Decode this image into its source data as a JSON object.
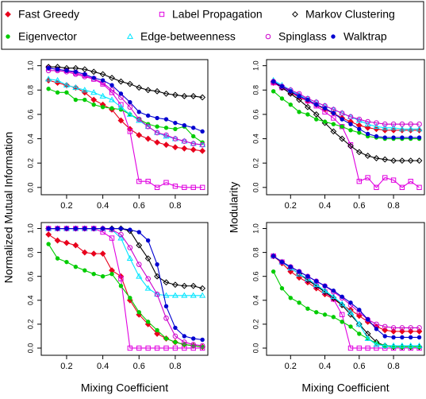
{
  "chart_data": [
    {
      "type": "line",
      "ylabel": "Normalized Mutual Information",
      "x": [
        0.1,
        0.15,
        0.2,
        0.25,
        0.3,
        0.35,
        0.4,
        0.45,
        0.5,
        0.55,
        0.6,
        0.65,
        0.7,
        0.75,
        0.8,
        0.85,
        0.9,
        0.95
      ],
      "xlim": [
        0.06,
        0.98
      ],
      "xticks": [
        0.2,
        0.4,
        0.6,
        0.8
      ],
      "ylim": [
        -0.06,
        1.05
      ],
      "yticks": [
        {
          "value": 0,
          "label": "0.0"
        },
        0.2,
        0.4,
        0.6,
        0.8,
        {
          "value": 1,
          "label": "1.0"
        }
      ],
      "series": [
        {
          "name": "Fast Greedy",
          "color": "#e8001c",
          "marker": "diamond-filled",
          "values": [
            0.88,
            0.86,
            0.84,
            0.82,
            0.78,
            0.72,
            0.68,
            0.64,
            0.55,
            0.48,
            0.43,
            0.4,
            0.37,
            0.35,
            0.33,
            0.32,
            0.31,
            0.3
          ]
        },
        {
          "name": "Label Propagation",
          "color": "#e000e0",
          "marker": "square-open",
          "values": [
            0.98,
            0.97,
            0.96,
            0.94,
            0.92,
            0.89,
            0.85,
            0.78,
            0.68,
            0.46,
            0.05,
            0.05,
            0,
            0.04,
            0.01,
            0,
            0,
            0
          ]
        },
        {
          "name": "Markov Clustering",
          "color": "#000000",
          "marker": "diamond-open",
          "values": [
            0.99,
            0.99,
            0.98,
            0.98,
            0.97,
            0.95,
            0.93,
            0.9,
            0.87,
            0.85,
            0.82,
            0.8,
            0.79,
            0.77,
            0.76,
            0.75,
            0.75,
            0.74
          ]
        },
        {
          "name": "Eigenvector",
          "color": "#00cc00",
          "marker": "circle-filled",
          "values": [
            0.81,
            0.78,
            0.78,
            0.72,
            0.72,
            0.68,
            0.66,
            0.65,
            0.64,
            0.6,
            0.56,
            0.52,
            0.5,
            0.49,
            0.48,
            0.5,
            0.42,
            0.37
          ]
        },
        {
          "name": "Edge-betweenness",
          "color": "#00e5ff",
          "marker": "triangle-open",
          "values": [
            0.89,
            0.88,
            0.84,
            0.82,
            0.8,
            0.78,
            0.75,
            0.72,
            0.66,
            0.6,
            0.55,
            0.5,
            0.45,
            0.42,
            0.4,
            0.38,
            0.36,
            0.35
          ]
        },
        {
          "name": "Spinglass",
          "color": "#cc00cc",
          "marker": "circle-open",
          "values": [
            0.96,
            0.96,
            0.95,
            0.93,
            0.91,
            0.89,
            0.86,
            0.8,
            0.74,
            0.66,
            0.56,
            0.5,
            0.45,
            0.43,
            0.4,
            0.38,
            0.36,
            0.35
          ]
        },
        {
          "name": "Walktrap",
          "color": "#0000d0",
          "marker": "circle-filled",
          "values": [
            0.98,
            0.97,
            0.96,
            0.95,
            0.93,
            0.9,
            0.88,
            0.84,
            0.77,
            0.7,
            0.62,
            0.59,
            0.57,
            0.56,
            0.53,
            0.51,
            0.49,
            0.46
          ]
        }
      ]
    },
    {
      "type": "line",
      "ylabel": "Modularity",
      "x": [
        0.1,
        0.15,
        0.2,
        0.25,
        0.3,
        0.35,
        0.4,
        0.45,
        0.5,
        0.55,
        0.6,
        0.65,
        0.7,
        0.75,
        0.8,
        0.85,
        0.9,
        0.95
      ],
      "xlim": [
        0.06,
        0.98
      ],
      "xticks": [
        0.2,
        0.4,
        0.6,
        0.8
      ],
      "ylim": [
        -0.06,
        1.05
      ],
      "yticks": [
        {
          "value": 0,
          "label": "0.0"
        },
        0.2,
        0.4,
        0.6,
        0.8,
        {
          "value": 1,
          "label": "1.0"
        }
      ],
      "series": [
        {
          "values": [
            0.86,
            0.82,
            0.78,
            0.74,
            0.71,
            0.68,
            0.64,
            0.61,
            0.57,
            0.54,
            0.51,
            0.49,
            0.48,
            0.47,
            0.47,
            0.47,
            0.47,
            0.47
          ]
        },
        {
          "values": [
            0.86,
            0.82,
            0.78,
            0.75,
            0.71,
            0.67,
            0.62,
            0.57,
            0.5,
            0.35,
            0.05,
            0.08,
            0,
            0.08,
            0.06,
            0,
            0.05,
            0
          ]
        },
        {
          "values": [
            0.87,
            0.82,
            0.77,
            0.72,
            0.66,
            0.6,
            0.53,
            0.46,
            0.4,
            0.34,
            0.29,
            0.26,
            0.24,
            0.23,
            0.22,
            0.22,
            0.22,
            0.22
          ]
        },
        {
          "values": [
            0.79,
            0.73,
            0.68,
            0.62,
            0.6,
            0.56,
            0.54,
            0.52,
            0.5,
            0.47,
            0.45,
            0.42,
            0.41,
            0.4,
            0.4,
            0.4,
            0.4,
            0.4
          ]
        },
        {
          "values": [
            0.88,
            0.84,
            0.8,
            0.76,
            0.73,
            0.7,
            0.67,
            0.64,
            0.61,
            0.58,
            0.55,
            0.52,
            0.5,
            0.49,
            0.49,
            0.48,
            0.48,
            0.48
          ]
        },
        {
          "values": [
            0.87,
            0.83,
            0.8,
            0.77,
            0.73,
            0.7,
            0.67,
            0.64,
            0.61,
            0.58,
            0.56,
            0.54,
            0.53,
            0.52,
            0.52,
            0.52,
            0.52,
            0.52
          ]
        },
        {
          "values": [
            0.87,
            0.83,
            0.79,
            0.75,
            0.72,
            0.68,
            0.65,
            0.61,
            0.56,
            0.52,
            0.48,
            0.44,
            0.42,
            0.41,
            0.41,
            0.41,
            0.41,
            0.41
          ]
        }
      ]
    },
    {
      "type": "line",
      "xlabel": "Mixing Coefficient",
      "x": [
        0.1,
        0.15,
        0.2,
        0.25,
        0.3,
        0.35,
        0.4,
        0.45,
        0.5,
        0.55,
        0.6,
        0.65,
        0.7,
        0.75,
        0.8,
        0.85,
        0.9,
        0.95
      ],
      "xlim": [
        0.06,
        0.98
      ],
      "xticks": [
        0.2,
        0.4,
        0.6,
        0.8
      ],
      "ylim": [
        -0.06,
        1.05
      ],
      "yticks": [
        {
          "value": 0,
          "label": "0.0"
        },
        0.2,
        0.4,
        0.6,
        0.8,
        {
          "value": 1,
          "label": "1.0"
        }
      ],
      "series": [
        {
          "values": [
            0.95,
            0.9,
            0.88,
            0.86,
            0.8,
            0.79,
            0.79,
            0.65,
            0.6,
            0.4,
            0.28,
            0.2,
            0.12,
            0.08,
            0.05,
            0.03,
            0.02,
            0.01
          ]
        },
        {
          "values": [
            1,
            1,
            1,
            1,
            1,
            1,
            0.97,
            0.92,
            0.58,
            0,
            0,
            0,
            0,
            0,
            0,
            0,
            0,
            0
          ]
        },
        {
          "values": [
            1,
            1,
            1,
            1,
            1,
            1,
            1,
            1,
            1,
            0.98,
            0.86,
            0.75,
            0.6,
            0.55,
            0.53,
            0.52,
            0.52,
            0.5
          ]
        },
        {
          "values": [
            0.87,
            0.75,
            0.72,
            0.68,
            0.65,
            0.62,
            0.6,
            0.62,
            0.52,
            0.42,
            0.3,
            0.22,
            0.15,
            0.08,
            0.05,
            0.03,
            0.02,
            0.01
          ]
        },
        {
          "values": [
            1,
            1,
            1,
            1,
            1,
            1,
            1,
            0.99,
            0.92,
            0.75,
            0.6,
            0.5,
            0.45,
            0.44,
            0.44,
            0.44,
            0.44,
            0.44
          ]
        },
        {
          "values": [
            1,
            1,
            1,
            1,
            1,
            1,
            1,
            0.99,
            0.95,
            0.84,
            0.7,
            0.58,
            0.45,
            0.25,
            0.1,
            0.05,
            0.03,
            0.02
          ]
        },
        {
          "values": [
            1,
            1,
            1,
            1,
            1,
            1,
            1,
            1,
            1,
            0.99,
            0.97,
            0.9,
            0.7,
            0.35,
            0.17,
            0.1,
            0.08,
            0.07
          ]
        }
      ]
    },
    {
      "type": "line",
      "xlabel": "Mixing Coefficient",
      "x": [
        0.1,
        0.15,
        0.2,
        0.25,
        0.3,
        0.35,
        0.4,
        0.45,
        0.5,
        0.55,
        0.6,
        0.65,
        0.7,
        0.75,
        0.8,
        0.85,
        0.9,
        0.95
      ],
      "xlim": [
        0.06,
        0.98
      ],
      "xticks": [
        0.2,
        0.4,
        0.6,
        0.8
      ],
      "ylim": [
        -0.06,
        1.05
      ],
      "yticks": [
        {
          "value": 0,
          "label": "0.0"
        },
        0.2,
        0.4,
        0.6,
        0.8,
        {
          "value": 1,
          "label": "1.0"
        }
      ],
      "series": [
        {
          "values": [
            0.77,
            0.71,
            0.64,
            0.59,
            0.55,
            0.5,
            0.45,
            0.41,
            0.36,
            0.32,
            0.27,
            0.22,
            0.18,
            0.15,
            0.14,
            0.14,
            0.14,
            0.14
          ]
        },
        {
          "values": [
            0.77,
            0.72,
            0.67,
            0.62,
            0.57,
            0.52,
            0.47,
            0.41,
            0.28,
            0,
            0,
            0,
            0,
            0,
            0,
            0,
            0,
            0
          ]
        },
        {
          "values": [
            0.77,
            0.72,
            0.67,
            0.62,
            0.57,
            0.52,
            0.47,
            0.42,
            0.36,
            0.28,
            0.2,
            0.12,
            0.05,
            0.02,
            0.01,
            0.01,
            0.01,
            0.01
          ]
        },
        {
          "values": [
            0.64,
            0.5,
            0.42,
            0.38,
            0.33,
            0.3,
            0.28,
            0.26,
            0.22,
            0.18,
            0.12,
            0.08,
            0.04,
            0.02,
            0.01,
            0.01,
            0.01,
            0.01
          ]
        },
        {
          "values": [
            0.77,
            0.72,
            0.67,
            0.62,
            0.58,
            0.53,
            0.48,
            0.43,
            0.37,
            0.3,
            0.2,
            0.08,
            0.03,
            0.02,
            0.02,
            0.02,
            0.02,
            0.02
          ]
        },
        {
          "values": [
            0.77,
            0.72,
            0.68,
            0.64,
            0.6,
            0.56,
            0.52,
            0.47,
            0.42,
            0.36,
            0.3,
            0.24,
            0.2,
            0.18,
            0.17,
            0.17,
            0.17,
            0.17
          ]
        },
        {
          "values": [
            0.77,
            0.72,
            0.68,
            0.64,
            0.6,
            0.56,
            0.52,
            0.48,
            0.43,
            0.38,
            0.32,
            0.24,
            0.16,
            0.1,
            0.09,
            0.09,
            0.09,
            0.09
          ]
        }
      ]
    }
  ]
}
